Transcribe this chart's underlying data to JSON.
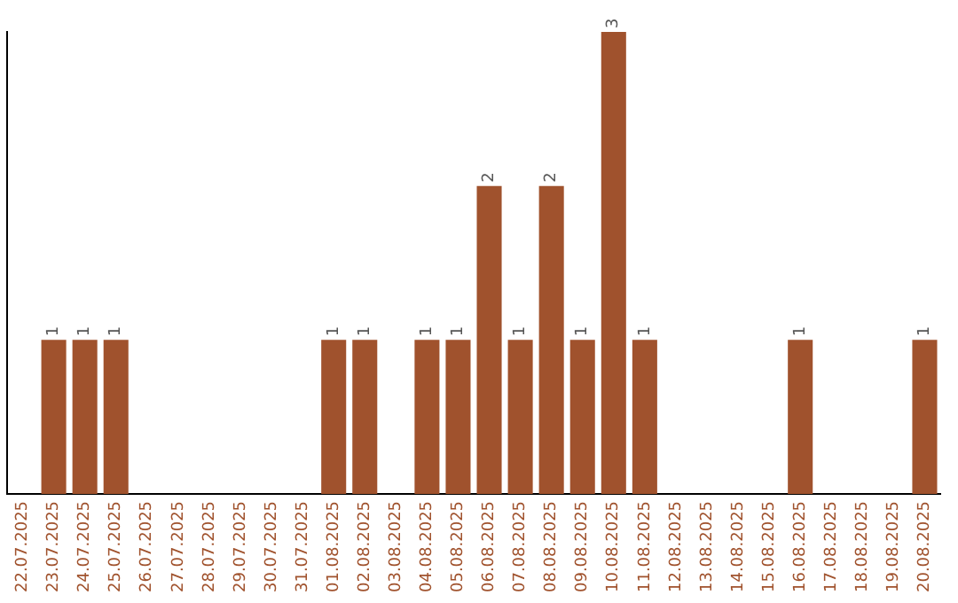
{
  "chart_data": {
    "type": "bar",
    "categories": [
      "22.07.2025",
      "23.07.2025",
      "24.07.2025",
      "25.07.2025",
      "26.07.2025",
      "27.07.2025",
      "28.07.2025",
      "29.07.2025",
      "30.07.2025",
      "31.07.2025",
      "01.08.2025",
      "02.08.2025",
      "03.08.2025",
      "04.08.2025",
      "05.08.2025",
      "06.08.2025",
      "07.08.2025",
      "08.08.2025",
      "09.08.2025",
      "10.08.2025",
      "11.08.2025",
      "12.08.2025",
      "13.08.2025",
      "14.08.2025",
      "15.08.2025",
      "16.08.2025",
      "17.08.2025",
      "18.08.2025",
      "19.08.2025",
      "20.08.2025"
    ],
    "values": [
      0,
      1,
      1,
      1,
      0,
      0,
      0,
      0,
      0,
      0,
      1,
      1,
      0,
      1,
      1,
      2,
      1,
      2,
      1,
      3,
      1,
      0,
      0,
      0,
      0,
      1,
      0,
      0,
      0,
      1
    ],
    "value_labels": [
      null,
      "1",
      "1",
      "1",
      null,
      null,
      null,
      null,
      null,
      null,
      "1",
      "1",
      null,
      "1",
      "1",
      "2",
      "1",
      "2",
      "1",
      "3",
      "1",
      null,
      null,
      null,
      null,
      "1",
      null,
      null,
      null,
      "1"
    ],
    "color": "#a0522d",
    "tick_labels": "x",
    "grid": false,
    "legend": false
  }
}
